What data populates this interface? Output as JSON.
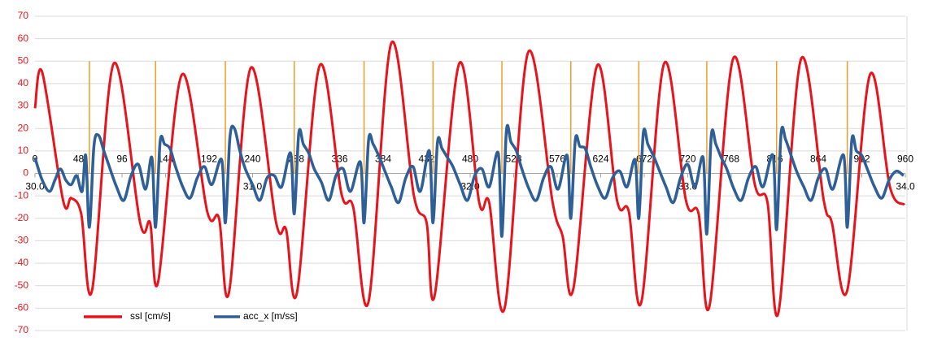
{
  "chart_data": {
    "type": "line",
    "xlim": [
      0,
      960
    ],
    "xticks": [
      0,
      48,
      96,
      144,
      192,
      240,
      288,
      336,
      384,
      432,
      480,
      528,
      576,
      624,
      672,
      720,
      768,
      816,
      864,
      912,
      960
    ],
    "x2lim": [
      30,
      34
    ],
    "x2ticks": [
      {
        "value": 30,
        "label": "30.0"
      },
      {
        "value": 31,
        "label": "31.0"
      },
      {
        "value": 32,
        "label": "32.0"
      },
      {
        "value": 33,
        "label": "33.0"
      },
      {
        "value": 34,
        "label": "34.0"
      }
    ],
    "ylim": [
      -70,
      70
    ],
    "yticks": [
      -70,
      -60,
      -50,
      -40,
      -30,
      -20,
      -10,
      0,
      10,
      20,
      30,
      40,
      50,
      60,
      70
    ],
    "grid": true,
    "legend": "bottom-left",
    "event_lines": {
      "color": "#f39c28",
      "top": 50,
      "x": [
        60,
        133,
        210,
        286,
        363,
        439,
        515,
        591,
        666,
        741,
        818,
        896
      ]
    },
    "series": [
      {
        "name": "ssl [cm/s]",
        "color": "#e8141c",
        "x": [
          0,
          8,
          31,
          40,
          51,
          63,
          87,
          116,
          127,
          136,
          162,
          190,
          203,
          214,
          238,
          266,
          277,
          289,
          314,
          338,
          351,
          368,
          393,
          418,
          432,
          441,
          468,
          490,
          501,
          518,
          544,
          571,
          582,
          594,
          620,
          642,
          655,
          669,
          694,
          718,
          732,
          744,
          770,
          794,
          808,
          820,
          845,
          870,
          879,
          896,
          921,
          943,
          959
        ],
        "values": [
          29,
          45,
          -12,
          -11,
          -18,
          -52,
          49,
          -22,
          -22,
          -48,
          44,
          -17,
          -20,
          -53,
          47,
          -22,
          -25,
          -53,
          48,
          -9,
          -15,
          -57,
          58,
          -10,
          -22,
          -54,
          49,
          -13,
          -13,
          -60,
          54,
          -13,
          -28,
          -51,
          48,
          -12,
          -17,
          -57,
          49,
          -12,
          -18,
          -59,
          51,
          -5,
          -13,
          -62,
          51,
          -12,
          -22,
          -52,
          44,
          -6,
          -14
        ]
      },
      {
        "name": "acc_x [m/ss]",
        "color": "#2e5f97",
        "x": [
          0,
          8,
          16,
          22,
          28,
          34,
          40,
          46,
          52,
          56,
          60,
          65,
          70,
          76,
          82,
          90,
          98,
          106,
          114,
          122,
          129,
          133,
          138,
          143,
          149,
          155,
          163,
          171,
          179,
          187,
          195,
          206,
          210,
          215,
          220,
          226,
          232,
          240,
          248,
          256,
          264,
          272,
          282,
          286,
          291,
          296,
          302,
          308,
          316,
          324,
          332,
          340,
          348,
          359,
          363,
          368,
          373,
          379,
          385,
          393,
          401,
          409,
          417,
          425,
          435,
          439,
          444,
          449,
          455,
          461,
          469,
          477,
          485,
          493,
          501,
          511,
          515,
          520,
          525,
          531,
          537,
          545,
          553,
          561,
          569,
          577,
          587,
          591,
          596,
          601,
          607,
          613,
          621,
          629,
          637,
          645,
          653,
          662,
          666,
          671,
          676,
          682,
          688,
          696,
          704,
          712,
          720,
          728,
          737,
          741,
          746,
          751,
          757,
          763,
          771,
          779,
          787,
          795,
          803,
          814,
          818,
          823,
          828,
          834,
          840,
          848,
          856,
          864,
          872,
          880,
          892,
          896,
          901,
          906,
          912,
          918,
          926,
          934,
          942,
          950,
          958
        ],
        "values": [
          7,
          -3,
          -8,
          -3,
          2,
          -3,
          -5,
          -1,
          -8,
          8,
          -24,
          12,
          17,
          10,
          3,
          -6,
          -12,
          -1,
          4,
          -7,
          7,
          -24,
          14,
          13,
          11,
          3,
          -6,
          -11,
          -2,
          3,
          -5,
          6,
          -22,
          16,
          20,
          10,
          2,
          -5,
          -12,
          -2,
          -1,
          -6,
          9,
          -18,
          18,
          13,
          9,
          2,
          -4,
          -12,
          -1,
          2,
          -8,
          5,
          -22,
          15,
          13,
          8,
          2,
          -6,
          -13,
          -2,
          3,
          -8,
          10,
          -22,
          14,
          11,
          7,
          3,
          -5,
          -12,
          -1,
          2,
          -6,
          9,
          -28,
          19,
          14,
          10,
          2,
          -7,
          -12,
          -2,
          3,
          -7,
          8,
          -20,
          15,
          12,
          11,
          3,
          -6,
          -11,
          -2,
          1,
          -6,
          6,
          -20,
          18,
          13,
          8,
          2,
          -6,
          -13,
          -2,
          4,
          -6,
          7,
          -27,
          17,
          13,
          7,
          2,
          -7,
          -12,
          -2,
          3,
          -6,
          8,
          -25,
          18,
          15,
          8,
          1,
          -6,
          -12,
          -2,
          2,
          -7,
          8,
          -24,
          15,
          10,
          8,
          2,
          -6,
          -11,
          -3,
          1,
          -1
        ]
      }
    ]
  }
}
